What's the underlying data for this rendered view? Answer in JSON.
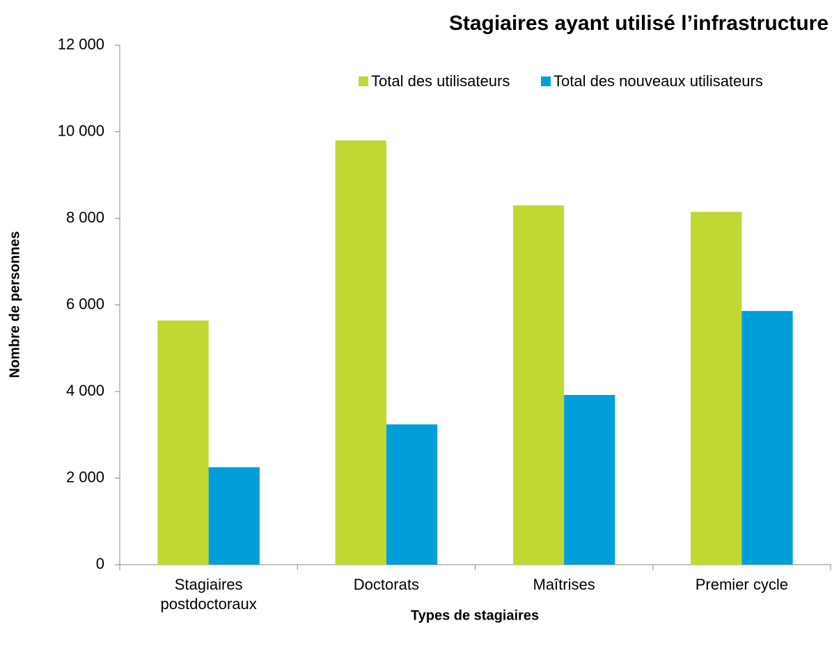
{
  "chart_data": {
    "type": "bar",
    "title": "Stagiaires ayant utilisé l’infrastructure",
    "x_label": "Types de stagiaires",
    "y_label": "Nombre de personnes",
    "categories": [
      "Stagiaires postdoctoraux",
      "Doctorats",
      "Maîtrises",
      "Premier cycle"
    ],
    "series": [
      {
        "name": "Total des utilisateurs",
        "color": "#c0d831",
        "values": [
          5640,
          9800,
          8300,
          8150
        ]
      },
      {
        "name": "Total des nouveaux utilisateurs",
        "color": "#009fda",
        "values": [
          2250,
          3240,
          3920,
          5860
        ]
      }
    ],
    "ylim": [
      0,
      12000
    ],
    "yticks": [
      0,
      {
        "value": 2000,
        "label": "2 000"
      },
      {
        "value": 4000,
        "label": "4 000"
      },
      {
        "value": 6000,
        "label": "6 000"
      },
      {
        "value": 8000,
        "label": "8 000"
      },
      {
        "value": 10000,
        "label": "10 000"
      },
      {
        "value": 12000,
        "label": "12 000"
      }
    ],
    "grid": false,
    "legend": "top"
  }
}
